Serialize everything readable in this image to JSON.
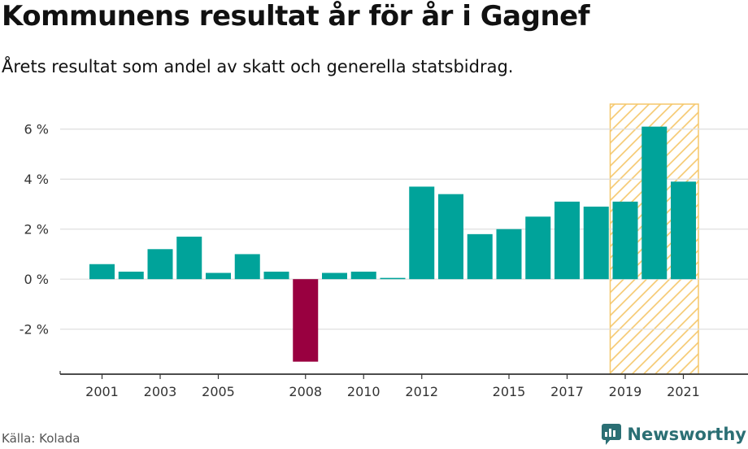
{
  "header": {
    "title": "Kommunens resultat år för år i Gagnef",
    "subtitle": "Årets resultat som andel av skatt och generella statsbidrag."
  },
  "footer": {
    "source": "Källa: Kolada",
    "brand": "Newsworthy",
    "brand_color": "#2b6f74"
  },
  "colors": {
    "positive": "#00a39a",
    "negative": "#990040",
    "highlight_stroke": "#f5c76a",
    "grid": "#dddddd",
    "axis": "#333333"
  },
  "chart_data": {
    "type": "bar",
    "x": [
      2001,
      2002,
      2003,
      2004,
      2005,
      2006,
      2007,
      2008,
      2009,
      2010,
      2011,
      2012,
      2013,
      2014,
      2015,
      2016,
      2017,
      2018,
      2019,
      2020,
      2021
    ],
    "values": [
      0.6,
      0.3,
      1.2,
      1.7,
      0.25,
      1.0,
      0.3,
      -3.3,
      0.25,
      0.3,
      0.05,
      3.7,
      3.4,
      1.8,
      2.0,
      2.5,
      3.1,
      2.9,
      3.1,
      6.1,
      3.9
    ],
    "x_tick_labels": [
      "2001",
      "2003",
      "2005",
      "2008",
      "2010",
      "2012",
      "2015",
      "2017",
      "2019",
      "2021"
    ],
    "y_ticks": [
      -2,
      0,
      2,
      4,
      6
    ],
    "y_tick_labels": [
      "-2 %",
      "0 %",
      "2 %",
      "4 %",
      "6 %"
    ],
    "ylim": [
      -3.8,
      7
    ],
    "highlight_range": [
      2019,
      2021
    ],
    "grid": true,
    "title": "Kommunens resultat år för år i Gagnef",
    "subtitle": "Årets resultat som andel av skatt och generella statsbidrag.",
    "xlabel": "",
    "ylabel": ""
  }
}
